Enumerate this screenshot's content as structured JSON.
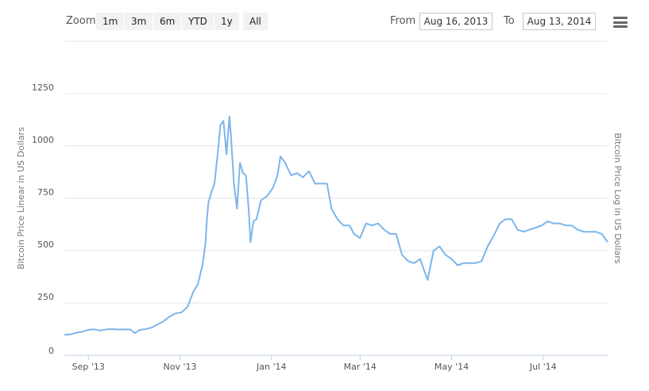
{
  "toolbar": {
    "zoom_label": "Zoom",
    "zoom_buttons": [
      "1m",
      "3m",
      "6m",
      "YTD",
      "1y",
      "All"
    ],
    "from_label": "From",
    "from_value": "Aug 16, 2013",
    "to_label": "To",
    "to_value": "Aug 13, 2014",
    "menu_icon": "hamburger-menu-icon"
  },
  "chart_data": {
    "type": "line",
    "title": "",
    "xlabel": "",
    "ylabel": "Bitcoin Price Linear in US Dollars",
    "ylabel_right": "Bitcoin Price Log in US Dollars",
    "ylim": [
      0,
      1250
    ],
    "xlim": [
      "2013-08-16",
      "2014-08-13"
    ],
    "y_ticks": [
      0,
      250,
      500,
      750,
      1000,
      1250
    ],
    "x_ticks": [
      {
        "date": "2013-09-01",
        "label": "Sep '13"
      },
      {
        "date": "2013-11-01",
        "label": "Nov '13"
      },
      {
        "date": "2014-01-01",
        "label": "Jan '14"
      },
      {
        "date": "2014-03-01",
        "label": "Mar '14"
      },
      {
        "date": "2014-05-01",
        "label": "May '14"
      },
      {
        "date": "2014-07-01",
        "label": "Jul '14"
      }
    ],
    "grid": true,
    "series_color": "#7cb5ec",
    "series": [
      {
        "x": [
          "2013-08-16",
          "2013-08-20",
          "2013-08-24",
          "2013-08-28",
          "2013-09-01",
          "2013-09-05",
          "2013-09-09",
          "2013-09-13",
          "2013-09-17",
          "2013-09-21",
          "2013-09-25",
          "2013-09-29",
          "2013-10-02",
          "2013-10-05",
          "2013-10-09",
          "2013-10-13",
          "2013-10-17",
          "2013-10-21",
          "2013-10-25",
          "2013-10-29",
          "2013-11-02",
          "2013-11-06",
          "2013-11-10",
          "2013-11-13",
          "2013-11-16",
          "2013-11-18",
          "2013-11-19",
          "2013-11-20",
          "2013-11-22",
          "2013-11-24",
          "2013-11-26",
          "2013-11-28",
          "2013-11-30",
          "2013-12-02",
          "2013-12-04",
          "2013-12-05",
          "2013-12-07",
          "2013-12-09",
          "2013-12-11",
          "2013-12-13",
          "2013-12-15",
          "2013-12-17",
          "2013-12-18",
          "2013-12-20",
          "2013-12-22",
          "2013-12-25",
          "2013-12-29",
          "2014-01-02",
          "2014-01-05",
          "2014-01-07",
          "2014-01-10",
          "2014-01-14",
          "2014-01-18",
          "2014-01-22",
          "2014-01-26",
          "2014-01-30",
          "2014-02-03",
          "2014-02-07",
          "2014-02-10",
          "2014-02-14",
          "2014-02-18",
          "2014-02-22",
          "2014-02-25",
          "2014-03-01",
          "2014-03-05",
          "2014-03-09",
          "2014-03-13",
          "2014-03-17",
          "2014-03-21",
          "2014-03-25",
          "2014-03-29",
          "2014-04-02",
          "2014-04-06",
          "2014-04-10",
          "2014-04-12",
          "2014-04-15",
          "2014-04-19",
          "2014-04-23",
          "2014-04-27",
          "2014-05-01",
          "2014-05-05",
          "2014-05-09",
          "2014-05-13",
          "2014-05-17",
          "2014-05-21",
          "2014-05-25",
          "2014-05-29",
          "2014-06-02",
          "2014-06-06",
          "2014-06-10",
          "2014-06-14",
          "2014-06-18",
          "2014-06-22",
          "2014-06-26",
          "2014-06-30",
          "2014-07-04",
          "2014-07-08",
          "2014-07-12",
          "2014-07-16",
          "2014-07-20",
          "2014-07-24",
          "2014-07-28",
          "2014-08-01",
          "2014-08-05",
          "2014-08-09",
          "2014-08-13"
        ],
        "y": [
          98,
          100,
          108,
          113,
          122,
          124,
          118,
          124,
          125,
          123,
          124,
          123,
          106,
          121,
          125,
          132,
          147,
          162,
          185,
          200,
          205,
          230,
          305,
          340,
          430,
          530,
          650,
          730,
          780,
          820,
          950,
          1100,
          1120,
          960,
          1140,
          1050,
          820,
          700,
          920,
          870,
          860,
          680,
          540,
          640,
          650,
          740,
          760,
          800,
          860,
          950,
          920,
          860,
          870,
          850,
          880,
          820,
          820,
          820,
          700,
          650,
          620,
          620,
          580,
          560,
          630,
          620,
          630,
          600,
          580,
          580,
          480,
          450,
          440,
          460,
          420,
          360,
          500,
          520,
          480,
          460,
          430,
          440,
          440,
          440,
          450,
          520,
          570,
          630,
          650,
          650,
          600,
          590,
          600,
          610,
          620,
          640,
          630,
          630,
          620,
          620,
          600,
          590,
          590,
          590,
          580,
          540
        ]
      }
    ]
  }
}
